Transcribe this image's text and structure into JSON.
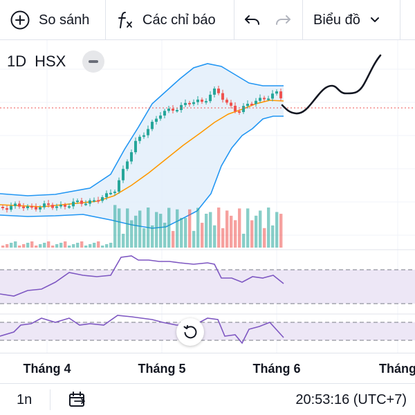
{
  "toolbar": {
    "compare_label": "So sánh",
    "indicators_label": "Các chỉ báo",
    "chart_type_label": "Biểu đồ"
  },
  "legend": {
    "interval": "1D",
    "exchange": "HSX"
  },
  "time_axis": {
    "labels": [
      "Tháng 4",
      "Tháng 5",
      "Tháng 6",
      "Tháng"
    ]
  },
  "bottom_bar": {
    "range_label": "1n",
    "clock": "20:53:16 (UTC+7)"
  },
  "colors": {
    "up": "#26a69a",
    "down": "#ef5350",
    "bollinger": "#2196f3",
    "ma": "#ff9800",
    "rsi": "#7e57c2",
    "band_fill": "#e3effa",
    "osc_fill": "#ede7f6"
  },
  "icons": {
    "compare": "plus-circle-icon",
    "indicators": "function-icon",
    "undo": "undo-icon",
    "redo": "redo-icon",
    "dropdown": "chevron-down-icon",
    "reset": "reset-icon",
    "date_range": "calendar-range-icon"
  }
}
